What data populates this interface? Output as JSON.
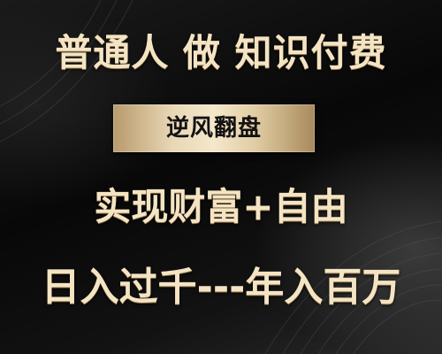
{
  "poster": {
    "title": "普通人 做 知识付费",
    "badge": "逆风翻盘",
    "line2": "实现财富+自由",
    "line3": "日入过千---年入百万"
  },
  "colors": {
    "text_gold": "#f4e4c3",
    "badge_gold": "#e9d8b6",
    "badge_text": "#121212",
    "background": "#0b0b0b"
  }
}
